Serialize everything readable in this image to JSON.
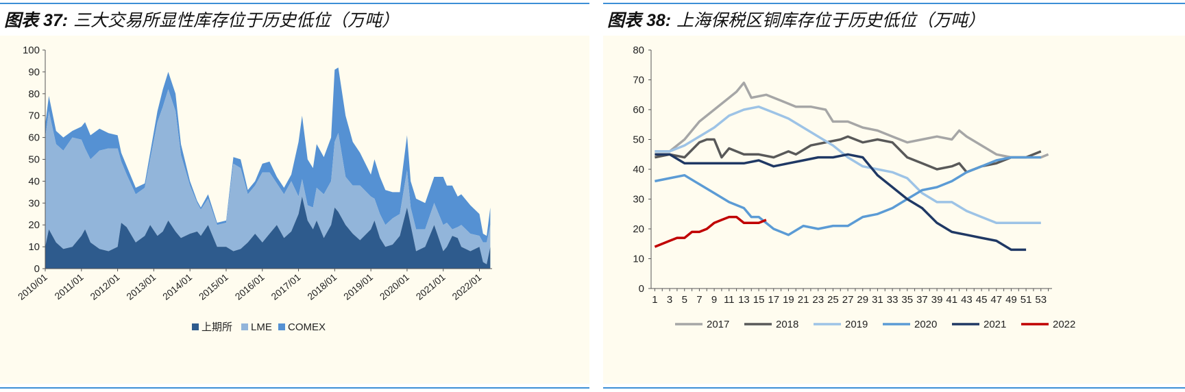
{
  "fig37": {
    "label": "图表 37:",
    "title": "三大交易所显性库存位于历史低位（万吨）"
  },
  "fig38": {
    "label": "图表 38:",
    "title": "上海保税区铜库存位于历史低位（万吨）"
  },
  "colors": {
    "shfe": "#2e5b8d",
    "lme": "#92b5da",
    "comex": "#5591d3",
    "y2017": "#a6a6a6",
    "y2018": "#595959",
    "y2019": "#9dc3e6",
    "y2020": "#5b9bd5",
    "y2021": "#1f3864",
    "y2022": "#c00000",
    "rule": "#3c8fd6",
    "plot_bg": "#fffcef"
  },
  "chart_data": [
    {
      "type": "area",
      "stacked": true,
      "ylim": [
        0,
        100
      ],
      "yticks": [
        0,
        10,
        20,
        30,
        40,
        50,
        60,
        70,
        80,
        90,
        100
      ],
      "x_tick_labels": [
        "2010/01",
        "2011/01",
        "2012/01",
        "2013/01",
        "2014/01",
        "2015/01",
        "2016/01",
        "2017/01",
        "2018/01",
        "2019/01",
        "2020/01",
        "2021/01",
        "2022/01"
      ],
      "x": [
        2010.0,
        2010.1,
        2010.3,
        2010.5,
        2010.75,
        2011.0,
        2011.1,
        2011.25,
        2011.5,
        2011.75,
        2012.0,
        2012.1,
        2012.25,
        2012.5,
        2012.75,
        2012.9,
        2013.1,
        2013.25,
        2013.4,
        2013.6,
        2013.75,
        2014.0,
        2014.2,
        2014.3,
        2014.5,
        2014.75,
        2015.0,
        2015.2,
        2015.4,
        2015.6,
        2015.8,
        2016.0,
        2016.2,
        2016.4,
        2016.6,
        2016.8,
        2017.0,
        2017.1,
        2017.25,
        2017.4,
        2017.5,
        2017.7,
        2017.9,
        2018.0,
        2018.1,
        2018.3,
        2018.5,
        2018.7,
        2019.0,
        2019.1,
        2019.25,
        2019.4,
        2019.6,
        2019.8,
        2020.0,
        2020.1,
        2020.25,
        2020.5,
        2020.75,
        2021.0,
        2021.1,
        2021.25,
        2021.4,
        2021.5,
        2021.75,
        2022.0,
        2022.1,
        2022.2,
        2022.3
      ],
      "series": [
        {
          "name": "上期所",
          "values": [
            10,
            18,
            12,
            9,
            10,
            15,
            18,
            12,
            9,
            8,
            10,
            21,
            19,
            12,
            15,
            20,
            15,
            17,
            22,
            17,
            14,
            16,
            17,
            15,
            20,
            10,
            10,
            8,
            9,
            12,
            16,
            12,
            16,
            20,
            14,
            17,
            25,
            33,
            22,
            18,
            22,
            14,
            20,
            28,
            26,
            20,
            16,
            13,
            18,
            22,
            14,
            10,
            11,
            15,
            28,
            20,
            8,
            10,
            20,
            8,
            10,
            15,
            14,
            10,
            8,
            10,
            3,
            2,
            10
          ]
        },
        {
          "name": "LME",
          "values": [
            50,
            54,
            45,
            45,
            50,
            44,
            37,
            38,
            45,
            47,
            45,
            28,
            24,
            22,
            22,
            30,
            52,
            57,
            60,
            55,
            38,
            22,
            13,
            12,
            12,
            10,
            11,
            40,
            37,
            22,
            22,
            32,
            28,
            19,
            20,
            23,
            8,
            8,
            7,
            10,
            15,
            20,
            20,
            30,
            36,
            22,
            22,
            25,
            15,
            10,
            11,
            10,
            12,
            10,
            17,
            8,
            10,
            8,
            10,
            12,
            11,
            3,
            5,
            10,
            8,
            5,
            9,
            10,
            10
          ]
        },
        {
          "name": "COMEX",
          "values": [
            6,
            7,
            6,
            6,
            3,
            6,
            12,
            11,
            10,
            7,
            6,
            4,
            4,
            3,
            2,
            3,
            5,
            8,
            8,
            8,
            5,
            2,
            1,
            1,
            2,
            1,
            1,
            3,
            4,
            2,
            2,
            4,
            5,
            3,
            3,
            3,
            25,
            29,
            21,
            18,
            20,
            17,
            20,
            33,
            30,
            28,
            20,
            15,
            10,
            18,
            17,
            16,
            12,
            10,
            16,
            12,
            14,
            12,
            12,
            22,
            17,
            20,
            14,
            14,
            13,
            10,
            4,
            3,
            8
          ]
        }
      ]
    },
    {
      "type": "line",
      "ylim": [
        0,
        80
      ],
      "yticks": [
        0,
        10,
        20,
        30,
        40,
        50,
        60,
        70,
        80
      ],
      "x_tick_labels": [
        "1",
        "3",
        "5",
        "7",
        "9",
        "11",
        "13",
        "15",
        "17",
        "19",
        "21",
        "23",
        "25",
        "27",
        "29",
        "31",
        "33",
        "35",
        "37",
        "39",
        "41",
        "43",
        "45",
        "47",
        "49",
        "51",
        "53"
      ],
      "series": [
        {
          "name": "2017",
          "x": [
            1,
            3,
            5,
            7,
            9,
            11,
            12,
            13,
            14,
            16,
            18,
            20,
            22,
            24,
            25,
            27,
            29,
            31,
            33,
            35,
            37,
            39,
            41,
            42,
            43,
            45,
            47,
            49,
            51,
            53,
            54
          ],
          "values": [
            46,
            46,
            50,
            56,
            60,
            64,
            66,
            69,
            64,
            65,
            63,
            61,
            61,
            60,
            56,
            56,
            54,
            53,
            51,
            49,
            50,
            51,
            50,
            53,
            51,
            48,
            45,
            44,
            44,
            44,
            45
          ]
        },
        {
          "name": "2018",
          "x": [
            1,
            3,
            5,
            7,
            8,
            9,
            10,
            11,
            13,
            15,
            17,
            19,
            20,
            22,
            24,
            26,
            27,
            29,
            31,
            33,
            35,
            37,
            39,
            41,
            42,
            43,
            45,
            47,
            49,
            51,
            53
          ],
          "values": [
            44,
            45,
            44,
            49,
            50,
            50,
            44,
            47,
            45,
            45,
            44,
            46,
            45,
            48,
            49,
            50,
            51,
            49,
            50,
            49,
            44,
            42,
            40,
            41,
            42,
            39,
            41,
            42,
            44,
            44,
            46
          ]
        },
        {
          "name": "2019",
          "x": [
            1,
            3,
            5,
            7,
            9,
            11,
            13,
            15,
            17,
            19,
            21,
            23,
            25,
            27,
            29,
            31,
            33,
            35,
            37,
            39,
            41,
            43,
            45,
            47,
            49,
            51,
            53
          ],
          "values": [
            46,
            46,
            48,
            51,
            54,
            58,
            60,
            61,
            59,
            57,
            54,
            51,
            48,
            44,
            41,
            40,
            39,
            37,
            32,
            29,
            29,
            26,
            24,
            22,
            22,
            22,
            22
          ]
        },
        {
          "name": "2020",
          "x": [
            1,
            3,
            5,
            7,
            9,
            11,
            13,
            14,
            15,
            17,
            19,
            21,
            23,
            25,
            27,
            29,
            31,
            33,
            35,
            37,
            39,
            41,
            43,
            45,
            47,
            49,
            51,
            53
          ],
          "values": [
            36,
            37,
            38,
            35,
            32,
            29,
            27,
            24,
            24,
            20,
            18,
            21,
            20,
            21,
            21,
            24,
            25,
            27,
            30,
            33,
            34,
            36,
            39,
            41,
            43,
            44,
            44,
            44
          ]
        },
        {
          "name": "2021",
          "x": [
            1,
            3,
            5,
            7,
            9,
            11,
            13,
            15,
            17,
            19,
            21,
            23,
            25,
            27,
            29,
            31,
            33,
            35,
            37,
            39,
            41,
            43,
            45,
            47,
            49,
            51
          ],
          "values": [
            45,
            45,
            42,
            42,
            42,
            42,
            42,
            43,
            41,
            42,
            43,
            44,
            44,
            45,
            44,
            38,
            34,
            30,
            27,
            22,
            19,
            18,
            17,
            16,
            13,
            13
          ]
        },
        {
          "name": "2022",
          "x": [
            1,
            2,
            3,
            4,
            5,
            6,
            7,
            8,
            9,
            10,
            11,
            12,
            13,
            14,
            15,
            16
          ],
          "values": [
            14,
            15,
            16,
            17,
            17,
            19,
            19,
            20,
            22,
            23,
            24,
            24,
            22,
            22,
            22,
            23
          ]
        }
      ]
    }
  ]
}
